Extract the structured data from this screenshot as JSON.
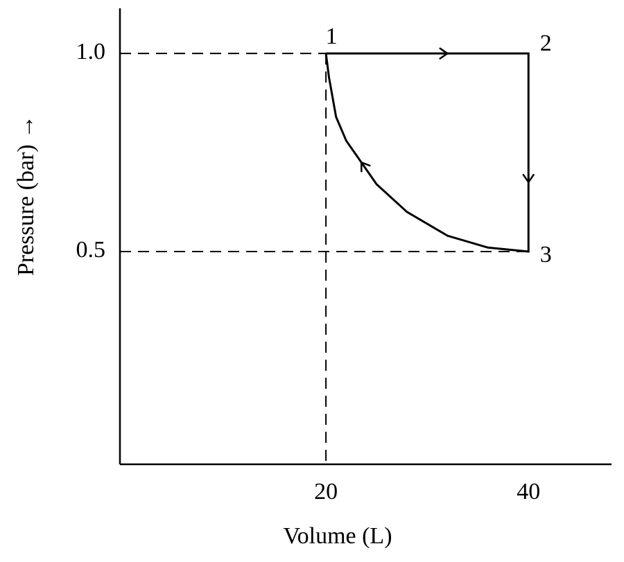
{
  "chart_data": {
    "type": "line",
    "xlabel": "Volume (L)",
    "ylabel": "Pressure (bar) →",
    "series": [
      {
        "x": [
          20,
          40,
          40,
          36,
          32,
          28,
          25,
          22,
          21,
          20.3,
          20
        ],
        "values": [
          1.0,
          1.0,
          0.5,
          0.51,
          0.54,
          0.6,
          0.67,
          0.78,
          0.84,
          0.94,
          1.0
        ],
        "color": "#000000"
      }
    ],
    "point_labels": [
      "1",
      "2",
      "3"
    ],
    "xlim": [
      -0.34,
      48.2
    ],
    "ylim": [
      -0.037,
      1.114
    ],
    "xticks": [
      20,
      40
    ],
    "yticks": [
      0.5,
      {
        "value": 1.0,
        "label": "1.0"
      }
    ]
  }
}
